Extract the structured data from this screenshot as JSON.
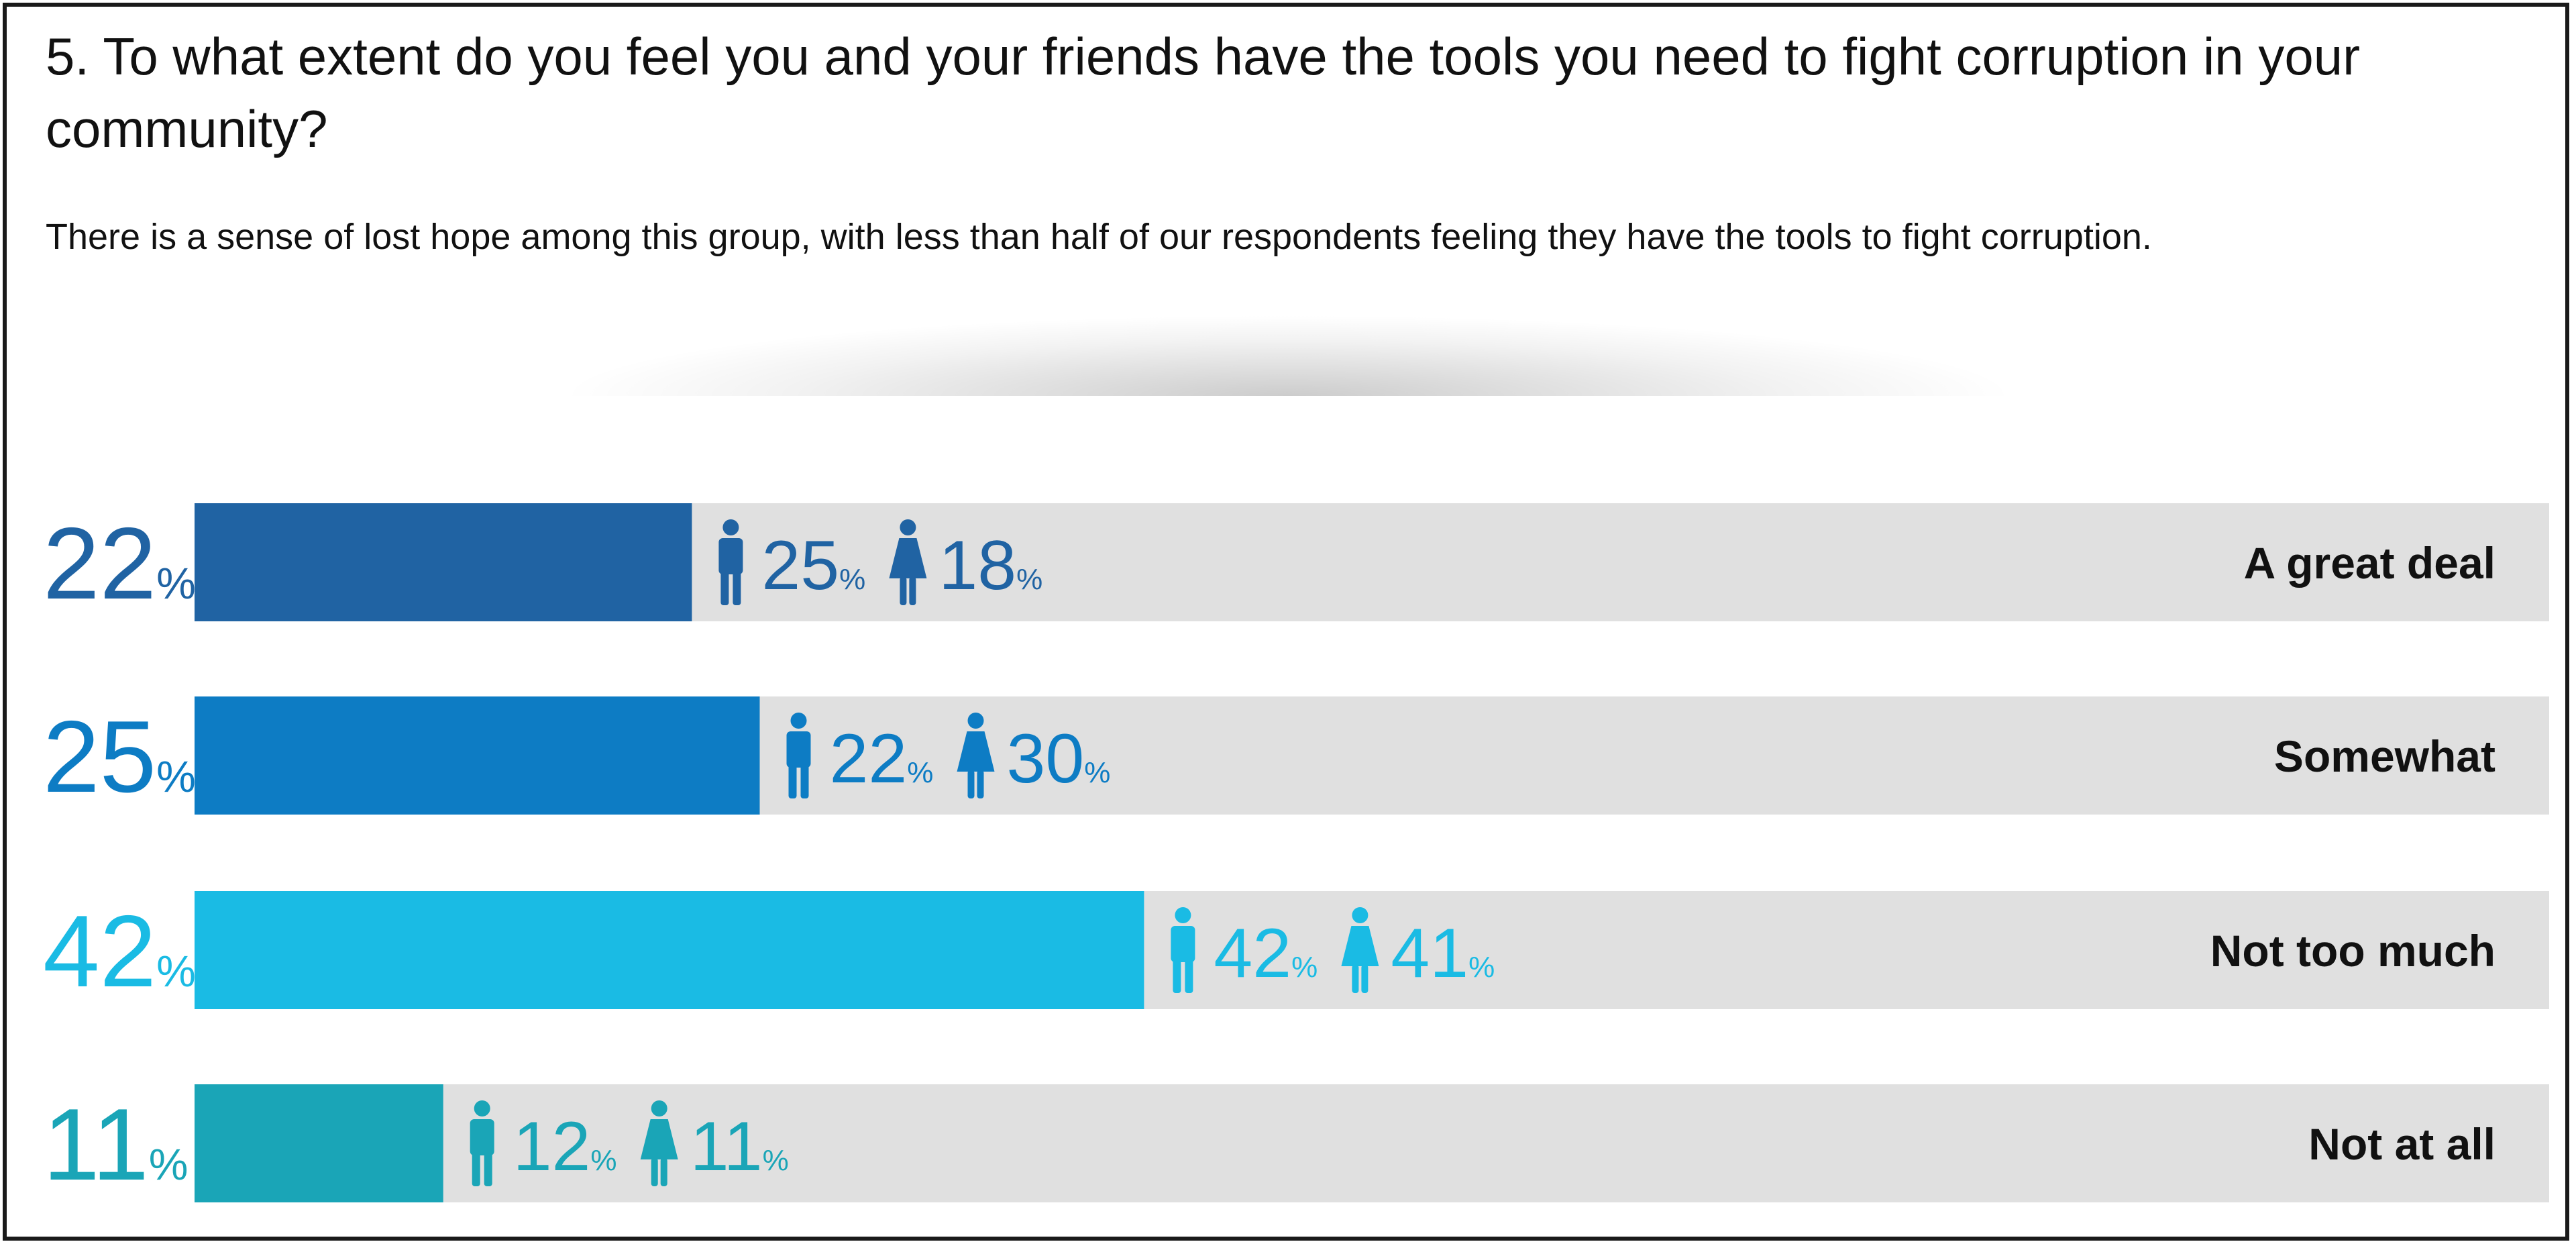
{
  "question": "5. To what extent do you feel you and your friends have the tools you need to fight corruption in your community?",
  "subtitle": "There is a sense of lost hope among this group, with less than half of our respondents feeling they have the tools to fight corruption.",
  "chart_data": {
    "type": "bar",
    "orientation": "horizontal",
    "categories": [
      "A great deal",
      "Somewhat",
      "Not too much",
      "Not at all"
    ],
    "values": [
      22,
      25,
      42,
      11
    ],
    "value_suffix": "%",
    "xlim": [
      0,
      100
    ],
    "colors": [
      "#2063a3",
      "#0d7cc4",
      "#1abbe4",
      "#1aa5b7"
    ],
    "track_color": "#e0e0e0",
    "label_color": "#111111",
    "series": [
      {
        "name": "Male",
        "icon": "male-icon",
        "values": [
          25,
          22,
          42,
          12
        ]
      },
      {
        "name": "Female",
        "icon": "female-icon",
        "values": [
          18,
          30,
          41,
          11
        ]
      }
    ]
  }
}
